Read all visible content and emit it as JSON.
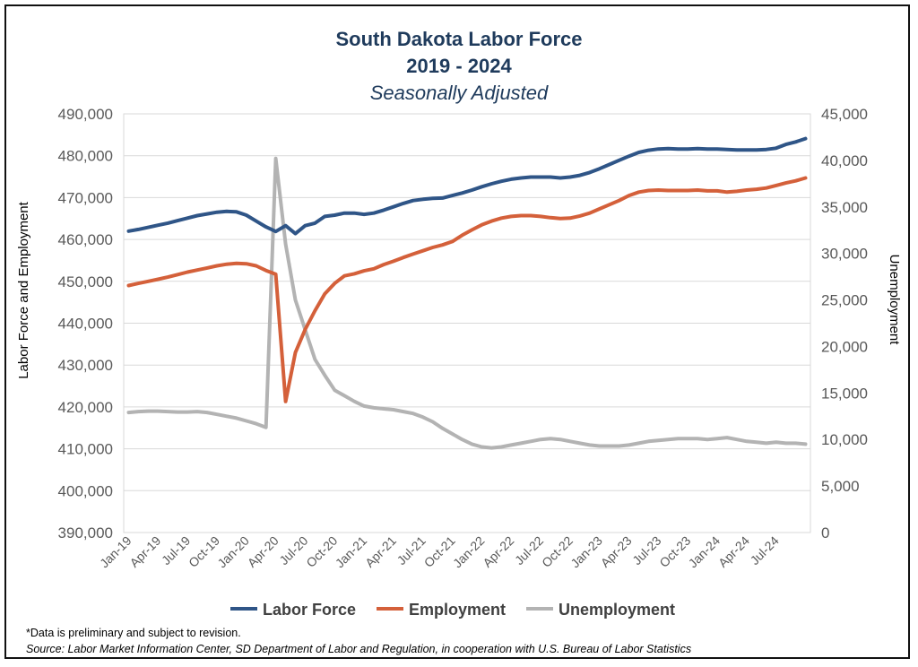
{
  "header": {
    "title": "South Dakota Labor Force",
    "years": "2019 - 2024",
    "subtitle": "Seasonally Adjusted"
  },
  "notes": {
    "preliminary": "*Data is preliminary and subject to revision.",
    "source": "Source: Labor Market Information Center, SD Department of Labor and Regulation, in cooperation with U.S. Bureau of Labor Statistics"
  },
  "colors": {
    "labor_force": "#2f5587",
    "employment": "#d4603a",
    "unemployment": "#b3b3b3",
    "grid": "#d9d9d9",
    "axis_text": "#595959"
  },
  "chart_data": {
    "type": "line",
    "ylabel": "Labor  Force and Employment",
    "y2label": "Unemployment",
    "ylim": [
      390000,
      490000
    ],
    "y2lim": [
      0,
      45000
    ],
    "yticks": [
      "390,000",
      "400,000",
      "410,000",
      "420,000",
      "430,000",
      "440,000",
      "450,000",
      "460,000",
      "470,000",
      "480,000",
      "490,000"
    ],
    "y2ticks": [
      "0",
      "5,000",
      "10,000",
      "15,000",
      "20,000",
      "25,000",
      "30,000",
      "35,000",
      "40,000",
      "45,000"
    ],
    "x": [
      "Jan-19",
      "Feb-19",
      "Mar-19",
      "Apr-19",
      "May-19",
      "Jun-19",
      "Jul-19",
      "Aug-19",
      "Sep-19",
      "Oct-19",
      "Nov-19",
      "Dec-19",
      "Jan-20",
      "Feb-20",
      "Mar-20",
      "Apr-20",
      "May-20",
      "Jun-20",
      "Jul-20",
      "Aug-20",
      "Sep-20",
      "Oct-20",
      "Nov-20",
      "Dec-20",
      "Jan-21",
      "Feb-21",
      "Mar-21",
      "Apr-21",
      "May-21",
      "Jun-21",
      "Jul-21",
      "Aug-21",
      "Sep-21",
      "Oct-21",
      "Nov-21",
      "Dec-21",
      "Jan-22",
      "Feb-22",
      "Mar-22",
      "Apr-22",
      "May-22",
      "Jun-22",
      "Jul-22",
      "Aug-22",
      "Sep-22",
      "Oct-22",
      "Nov-22",
      "Dec-22",
      "Jan-23",
      "Feb-23",
      "Mar-23",
      "Apr-23",
      "May-23",
      "Jun-23",
      "Jul-23",
      "Aug-23",
      "Sep-23",
      "Oct-23",
      "Nov-23",
      "Dec-23",
      "Jan-24",
      "Feb-24",
      "Mar-24",
      "Apr-24",
      "May-24",
      "Jun-24",
      "Jul-24",
      "Aug-24",
      "Sep-24",
      "Oct-24"
    ],
    "x_tick_labels": [
      "Jan-19",
      "Apr-19",
      "Jul-19",
      "Oct-19",
      "Jan-20",
      "Apr-20",
      "Jul-20",
      "Oct-20",
      "Jan-21",
      "Apr-21",
      "Jul-21",
      "Oct-21",
      "Jan-22",
      "Apr-22",
      "Jul-22",
      "Oct-22",
      "Jan-23",
      "Apr-23",
      "Jul-23",
      "Oct-23",
      "Jan-24",
      "Apr-24",
      "Jul-24"
    ],
    "series": [
      {
        "name": "Labor Force",
        "axis": "left",
        "values": [
          462000,
          462400,
          462900,
          463400,
          463900,
          464500,
          465100,
          465700,
          466100,
          466500,
          466700,
          466600,
          465800,
          464400,
          463000,
          461900,
          463300,
          461400,
          463300,
          463900,
          465500,
          465800,
          466300,
          466300,
          466000,
          466300,
          467000,
          467800,
          468600,
          469300,
          469600,
          469800,
          469900,
          470500,
          471100,
          471800,
          472600,
          473300,
          473900,
          474400,
          474700,
          474900,
          474900,
          474900,
          474700,
          474900,
          475300,
          476000,
          476900,
          477900,
          478900,
          479900,
          480800,
          481300,
          481600,
          481700,
          481600,
          481600,
          481700,
          481600,
          481600,
          481500,
          481400,
          481400,
          481400,
          481500,
          481800,
          482700,
          483300,
          484100
        ]
      },
      {
        "name": "Employment",
        "axis": "left",
        "values": [
          449000,
          449500,
          450000,
          450500,
          451000,
          451600,
          452200,
          452700,
          453200,
          453700,
          454100,
          454300,
          454200,
          453700,
          452600,
          451700,
          421300,
          433000,
          438500,
          443000,
          447000,
          449500,
          451300,
          451800,
          452500,
          453000,
          454000,
          454800,
          455700,
          456500,
          457300,
          458100,
          458700,
          459500,
          461000,
          462300,
          463500,
          464400,
          465100,
          465500,
          465700,
          465700,
          465500,
          465200,
          465000,
          465100,
          465600,
          466300,
          467300,
          468300,
          469300,
          470500,
          471300,
          471700,
          471800,
          471700,
          471700,
          471700,
          471800,
          471600,
          471600,
          471300,
          471500,
          471800,
          472000,
          472300,
          472900,
          473500,
          474000,
          474700
        ]
      },
      {
        "name": "Unemployment",
        "axis": "right",
        "values": [
          12900,
          13000,
          13050,
          13050,
          13000,
          12950,
          12950,
          13000,
          12900,
          12700,
          12500,
          12300,
          12000,
          11700,
          11300,
          40200,
          31000,
          25000,
          21800,
          18600,
          16900,
          15300,
          14700,
          14100,
          13600,
          13400,
          13300,
          13200,
          13000,
          12800,
          12400,
          11900,
          11200,
          10600,
          10000,
          9500,
          9200,
          9100,
          9200,
          9400,
          9600,
          9800,
          10000,
          10100,
          10000,
          9800,
          9600,
          9400,
          9300,
          9300,
          9300,
          9400,
          9600,
          9800,
          9900,
          10000,
          10100,
          10100,
          10100,
          10000,
          10100,
          10200,
          10000,
          9800,
          9700,
          9600,
          9700,
          9600,
          9600,
          9500
        ]
      }
    ],
    "legend": {
      "position": "bottom",
      "entries": [
        "Labor Force",
        "Employment",
        "Unemployment"
      ]
    },
    "grid": true
  }
}
